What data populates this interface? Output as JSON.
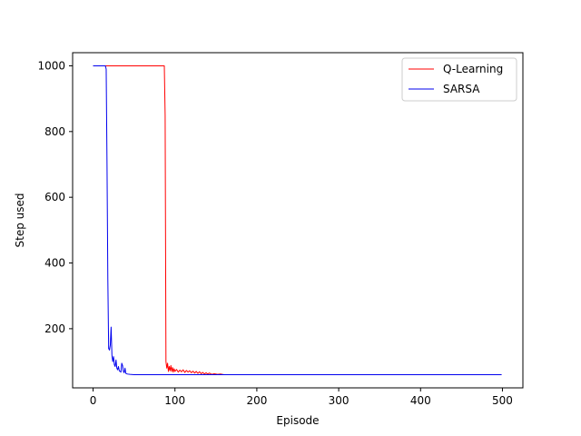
{
  "chart_data": {
    "type": "line",
    "title": "",
    "xlabel": "Episode",
    "ylabel": "Step used",
    "xlim": [
      -25,
      525
    ],
    "ylim": [
      20,
      1040
    ],
    "xticks": [
      0,
      100,
      200,
      300,
      400,
      500
    ],
    "yticks": [
      200,
      400,
      600,
      800,
      1000
    ],
    "grid": false,
    "legend": "top-right",
    "series": [
      {
        "name": "Q-Learning",
        "color": "#ff0000",
        "points": [
          [
            0,
            1000
          ],
          [
            10,
            1000
          ],
          [
            20,
            1000
          ],
          [
            30,
            1000
          ],
          [
            40,
            1000
          ],
          [
            50,
            1000
          ],
          [
            60,
            1000
          ],
          [
            70,
            1000
          ],
          [
            80,
            1000
          ],
          [
            87,
            1000
          ],
          [
            88,
            850
          ],
          [
            89,
            100
          ],
          [
            90,
            80
          ],
          [
            91,
            95
          ],
          [
            92,
            70
          ],
          [
            93,
            85
          ],
          [
            94,
            72
          ],
          [
            95,
            88
          ],
          [
            96,
            70
          ],
          [
            97,
            82
          ],
          [
            98,
            68
          ],
          [
            99,
            78
          ],
          [
            100,
            70
          ],
          [
            102,
            76
          ],
          [
            104,
            68
          ],
          [
            106,
            74
          ],
          [
            108,
            69
          ],
          [
            110,
            75
          ],
          [
            112,
            67
          ],
          [
            114,
            73
          ],
          [
            116,
            68
          ],
          [
            118,
            72
          ],
          [
            120,
            66
          ],
          [
            122,
            71
          ],
          [
            124,
            65
          ],
          [
            126,
            70
          ],
          [
            128,
            64
          ],
          [
            130,
            69
          ],
          [
            132,
            63
          ],
          [
            134,
            67
          ],
          [
            136,
            62
          ],
          [
            138,
            66
          ],
          [
            140,
            62
          ],
          [
            142,
            65
          ],
          [
            145,
            61
          ],
          [
            148,
            63
          ],
          [
            152,
            61
          ],
          [
            156,
            62
          ],
          [
            160,
            60
          ],
          [
            200,
            60
          ],
          [
            300,
            60
          ],
          [
            400,
            60
          ],
          [
            499,
            60
          ]
        ]
      },
      {
        "name": "SARSA",
        "color": "#0000ee",
        "points": [
          [
            0,
            1000
          ],
          [
            5,
            1000
          ],
          [
            10,
            1000
          ],
          [
            15,
            1000
          ],
          [
            16,
            990
          ],
          [
            17,
            700
          ],
          [
            18,
            350
          ],
          [
            19,
            140
          ],
          [
            20,
            135
          ],
          [
            21,
            150
          ],
          [
            22,
            205
          ],
          [
            23,
            120
          ],
          [
            24,
            100
          ],
          [
            25,
            115
          ],
          [
            26,
            90
          ],
          [
            27,
            85
          ],
          [
            28,
            105
          ],
          [
            29,
            80
          ],
          [
            30,
            75
          ],
          [
            31,
            85
          ],
          [
            32,
            72
          ],
          [
            33,
            70
          ],
          [
            34,
            68
          ],
          [
            35,
            95
          ],
          [
            36,
            88
          ],
          [
            37,
            70
          ],
          [
            38,
            66
          ],
          [
            39,
            80
          ],
          [
            40,
            64
          ],
          [
            42,
            62
          ],
          [
            45,
            61
          ],
          [
            50,
            60
          ],
          [
            100,
            60
          ],
          [
            200,
            60
          ],
          [
            300,
            60
          ],
          [
            400,
            60
          ],
          [
            499,
            60
          ]
        ]
      }
    ]
  }
}
